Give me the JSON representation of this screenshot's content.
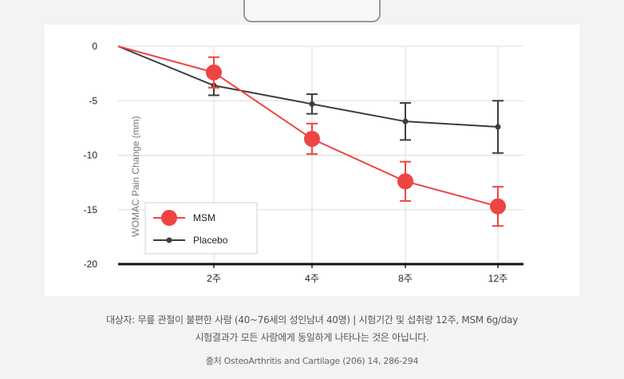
{
  "chart_data": {
    "type": "line",
    "title": "",
    "xlabel": "",
    "ylabel": "WOMAC Pain Change (mm)",
    "x": [
      "0",
      "2주",
      "4주",
      "8주",
      "12주"
    ],
    "tick_labels_x": [
      "2주",
      "4주",
      "8주",
      "12주"
    ],
    "tick_labels_y": [
      "0",
      "-5",
      "-10",
      "-15",
      "-20"
    ],
    "ylim": [
      -20,
      0
    ],
    "grid": true,
    "legend_position": "bottom-left",
    "series": [
      {
        "name": "MSM",
        "color": "#ee4444",
        "values": [
          0,
          -2.4,
          -8.5,
          -12.4,
          -14.7
        ],
        "error": [
          null,
          1.4,
          1.4,
          1.8,
          1.8
        ]
      },
      {
        "name": "Placebo",
        "color": "#3d3d3d",
        "values": [
          0,
          -3.6,
          -5.3,
          -6.9,
          -7.4
        ],
        "error": [
          null,
          0.9,
          0.9,
          1.7,
          2.4
        ]
      }
    ]
  },
  "caption": {
    "line1": "대상자: 무릎 관절이 불편한 사람 (40~76세의 성인남녀 40명) | 시험기간 및 섭취량 12주, MSM 6g/day",
    "line2": "시험결과가 모든 사람에게 동일하게 나타나는 것은 아닙니다.",
    "source": "출처 OsteoArthritis and Cartilage (206) 14, 286-294"
  }
}
